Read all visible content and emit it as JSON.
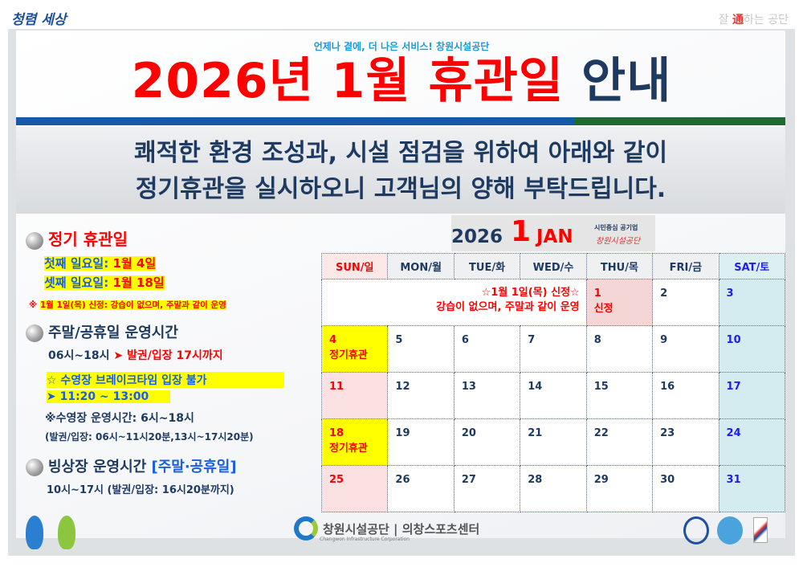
{
  "header": {
    "logo_left": "청렴 세상",
    "logo_right_pre": "잘 ",
    "logo_right_accent": "通",
    "logo_right_post": "하는 공단",
    "tagline": "언제나 곁에, 더 나은 서비스! 창원시설공단",
    "title_red": "2026년 1월 휴관일",
    "title_navy": "안내"
  },
  "notice": {
    "line1": "쾌적한 환경 조성과, 시설 점검을 위하여 아래와 같이",
    "line2": "정기휴관을 실시하오니 고객님의 양해 부탁드립니다."
  },
  "info": {
    "closed_heading": "정기 휴관일",
    "closed_1_label": "첫째 일요일:",
    "closed_1_value": "1월  4일",
    "closed_2_label": "셋째 일요일:",
    "closed_2_value": "1월 18일",
    "newyear_mark": "※",
    "newyear_label": "1월 1일(목) 신정:",
    "newyear_text": "강습이 없으며, 주말과 같이 운영",
    "weekend_heading": "주말/공휴일 운영시간",
    "weekend_hours": "06시~18시",
    "weekend_arrow": "➤",
    "weekend_ticket": "발권/입장 17시까지",
    "break_line1": "☆ 수영장 브레이크타임 입장 불가",
    "break_line2": "➤ 11:20 ~ 13:00",
    "pool_hours": "※수영장 운영시간:  6시~18시",
    "pool_ticket": "(발권/입장:  06시~11시20분,13시~17시20분)",
    "rink_heading": "빙상장 운영시간",
    "rink_tag": "[주말·공휴일]",
    "rink_hours": "10시~17시  (발권/입장:  16시20분까지)"
  },
  "calendar": {
    "year": "2026",
    "month": "1",
    "month_en": "JAN",
    "org_line1": "시민중심 공기업",
    "org_line2": "창원시설공단",
    "weekdays": [
      "SUN/일",
      "MON/월",
      "TUE/화",
      "WED/수",
      "THU/목",
      "FRI/금",
      "SAT/토"
    ],
    "note_line1": "☆1월 1일(목) 신정☆",
    "note_line2": "강습이 없으며, 주말과 같이 운영",
    "day1": "1",
    "day1_label": "신정",
    "day2": "2",
    "day3": "3",
    "weeks": [
      [
        "4",
        "5",
        "6",
        "7",
        "8",
        "9",
        "10"
      ],
      [
        "11",
        "12",
        "13",
        "14",
        "15",
        "16",
        "17"
      ],
      [
        "18",
        "19",
        "20",
        "21",
        "22",
        "23",
        "24"
      ],
      [
        "25",
        "26",
        "27",
        "28",
        "29",
        "30",
        "31"
      ]
    ],
    "closed_label": "정기휴관"
  },
  "footer": {
    "org": "창원시설공단 | 의창스포츠센터",
    "org_en": "Changwon Infrastructure Corporation"
  }
}
